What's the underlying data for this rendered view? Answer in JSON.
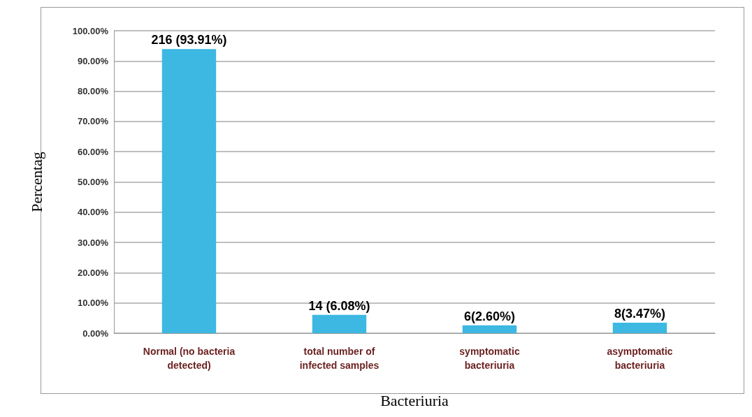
{
  "chart_data": {
    "type": "bar",
    "xlabel": "Bacteriuria",
    "ylabel": "Percentag",
    "categories": [
      "Normal (no bacteria\ndetected)",
      "total number of\ninfected samples",
      "symptomatic\nbacteriuria",
      "asymptomatic\nbacteriuria"
    ],
    "values": [
      93.91,
      6.08,
      2.6,
      3.47
    ],
    "value_labels": [
      "216 (93.91%)",
      "14 (6.08%)",
      "6(2.60%)",
      "8(3.47%)"
    ],
    "color": "#3cb8e2",
    "ylim": [
      0,
      100
    ],
    "yticks": [
      {
        "value": 0,
        "label": "0.00%"
      },
      {
        "value": 10,
        "label": "10.00%"
      },
      {
        "value": 20,
        "label": "20.00%"
      },
      {
        "value": 30,
        "label": "30.00%"
      },
      {
        "value": 40,
        "label": "40.00%"
      },
      {
        "value": 50,
        "label": "50.00%"
      },
      {
        "value": 60,
        "label": "60.00%"
      },
      {
        "value": 70,
        "label": "70.00%"
      },
      {
        "value": 80,
        "label": "80.00%"
      },
      {
        "value": 90,
        "label": "90.00%"
      },
      {
        "value": 100,
        "label": "100.00%"
      }
    ],
    "grid": "y"
  }
}
